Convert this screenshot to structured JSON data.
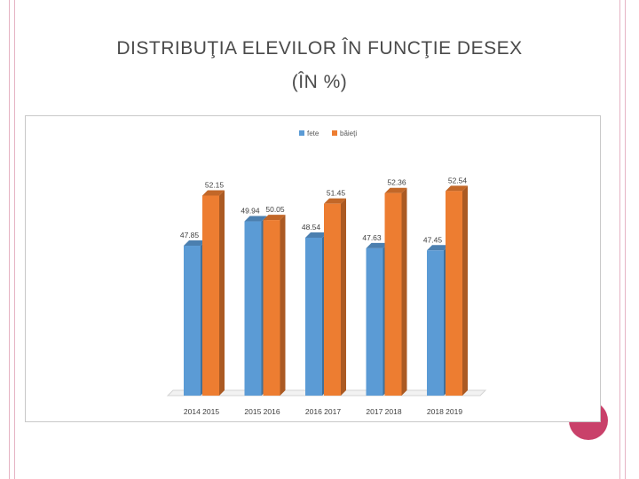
{
  "slide": {
    "title_line1": "DISTRIBUŢIA ELEVILOR ÎN FUNCŢIE DESEX",
    "title_line2": "(ÎN %)"
  },
  "colors": {
    "accent_pink": "#c9416a",
    "frame_lines": "#e6b4c4"
  },
  "chart_data": {
    "type": "bar",
    "categories": [
      "2014 2015",
      "2015 2016",
      "2016 2017",
      "2017 2018",
      "2018 2019"
    ],
    "series": [
      {
        "name": "fete",
        "color": "#5b9bd5",
        "values": [
          47.85,
          49.94,
          48.54,
          47.63,
          47.45
        ]
      },
      {
        "name": "băieţi",
        "color": "#ed7d31",
        "values": [
          52.15,
          50.05,
          51.45,
          52.36,
          52.54
        ]
      }
    ],
    "ylim": [
      35,
      55
    ],
    "legend_position": "top",
    "grid": false,
    "style": "3d-columns",
    "title": "",
    "xlabel": "",
    "ylabel": ""
  }
}
